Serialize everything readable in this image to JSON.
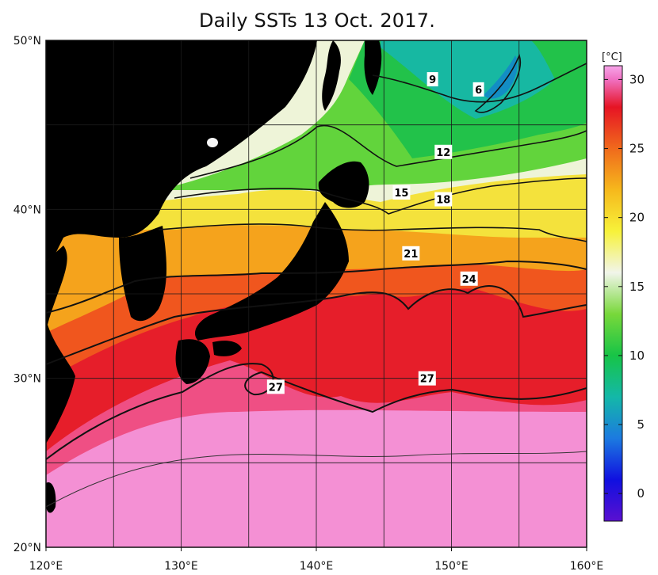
{
  "title": "Daily SSTs 13 Oct. 2017.",
  "map": {
    "lon_range": [
      120,
      160
    ],
    "lat_range": [
      20,
      50
    ],
    "lon_ticks": [
      {
        "value": 120,
        "label": "120°E"
      },
      {
        "value": 130,
        "label": "130°E"
      },
      {
        "value": 140,
        "label": "140°E"
      },
      {
        "value": 150,
        "label": "150°E"
      },
      {
        "value": 160,
        "label": "160°E"
      }
    ],
    "lat_ticks": [
      {
        "value": 20,
        "label": "20°N"
      },
      {
        "value": 30,
        "label": "30°N"
      },
      {
        "value": 40,
        "label": "40°N"
      },
      {
        "value": 50,
        "label": "50°N"
      }
    ],
    "contour_labels": [
      {
        "text": "9",
        "lon": 148.6,
        "lat": 47.7
      },
      {
        "text": "6",
        "lon": 152.0,
        "lat": 47.1
      },
      {
        "text": "12",
        "lon": 149.4,
        "lat": 43.4
      },
      {
        "text": "15",
        "lon": 146.3,
        "lat": 41.0
      },
      {
        "text": "18",
        "lon": 149.4,
        "lat": 40.6
      },
      {
        "text": "21",
        "lon": 147.0,
        "lat": 37.4
      },
      {
        "text": "24",
        "lon": 151.3,
        "lat": 35.9
      },
      {
        "text": "27",
        "lon": 137.0,
        "lat": 29.5
      },
      {
        "text": "27",
        "lon": 148.2,
        "lat": 30.0
      }
    ],
    "colors": {
      "land": "#4a4a4a",
      "grid": "#1a1a1a"
    }
  },
  "colorbar": {
    "unit": "[°C]",
    "min": -2,
    "max": 31,
    "ticks": [
      {
        "value": 0,
        "label": "0"
      },
      {
        "value": 5,
        "label": "5"
      },
      {
        "value": 10,
        "label": "10"
      },
      {
        "value": 15,
        "label": "15"
      },
      {
        "value": 20,
        "label": "20"
      },
      {
        "value": 25,
        "label": "25"
      },
      {
        "value": 30,
        "label": "30"
      }
    ],
    "stops": [
      {
        "value": -2,
        "color": "#5a10d0"
      },
      {
        "value": 1,
        "color": "#1010e0"
      },
      {
        "value": 4,
        "color": "#1c7ae0"
      },
      {
        "value": 7,
        "color": "#14b8a8"
      },
      {
        "value": 10,
        "color": "#17c447"
      },
      {
        "value": 13,
        "color": "#78d83a"
      },
      {
        "value": 16,
        "color": "#f1f5ea"
      },
      {
        "value": 19,
        "color": "#f7f23a"
      },
      {
        "value": 22,
        "color": "#f6b81c"
      },
      {
        "value": 25,
        "color": "#f06a1c"
      },
      {
        "value": 28,
        "color": "#e61424"
      },
      {
        "value": 30,
        "color": "#f070c2"
      },
      {
        "value": 31,
        "color": "#f7a6ea"
      }
    ]
  }
}
